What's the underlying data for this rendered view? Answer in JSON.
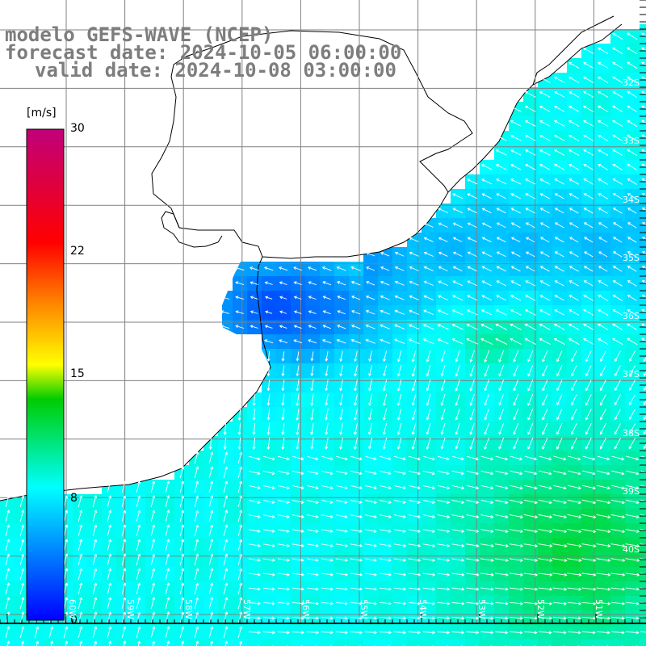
{
  "title": {
    "line1": "modelo GEFS-WAVE (NCEP)",
    "line2": "forecast date: 2024-10-05 06:00:00",
    "line3": "valid date: 2024-10-08 03:00:00"
  },
  "colorbar": {
    "unit": "[m/s]",
    "min": 0,
    "max": 30,
    "ticks": [
      {
        "label": "30",
        "value": 30
      },
      {
        "label": "22",
        "value": 22
      },
      {
        "label": "15",
        "value": 15
      },
      {
        "label": "8",
        "value": 8
      },
      {
        "label": "0",
        "value": 0
      }
    ],
    "colors": [
      "#0000ff",
      "#00ffff",
      "#00cc00",
      "#ffff00",
      "#ff8000",
      "#ff0000",
      "#c0007a"
    ]
  },
  "axes": {
    "lat_labels": [
      "32S",
      "33S",
      "34S",
      "35S",
      "36S",
      "37S",
      "38S",
      "39S",
      "40S"
    ],
    "lon_labels": [
      "60W",
      "59W",
      "58W",
      "57W",
      "56W",
      "55W",
      "54W",
      "53W",
      "52W",
      "51W"
    ]
  },
  "colors": {
    "land": "#ffffff",
    "coast": "#000000",
    "grid": "#808080",
    "arrow": "#ffffff",
    "label": "#7d7d7d"
  }
}
